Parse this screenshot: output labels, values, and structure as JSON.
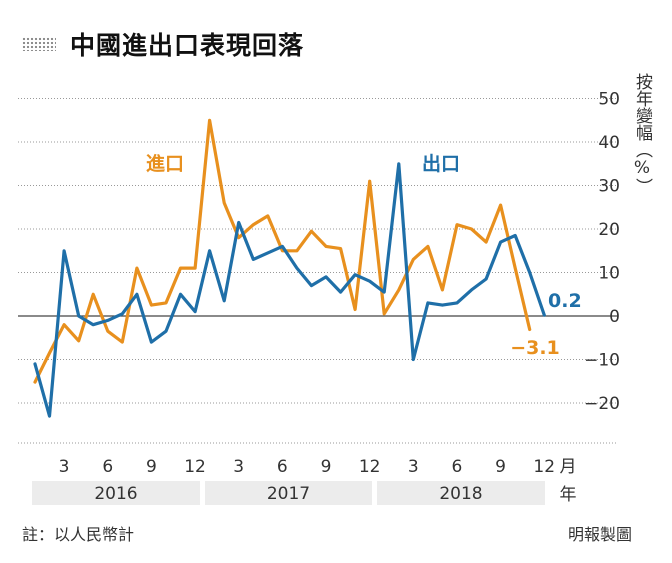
{
  "title": "中國進出口表現回落",
  "ylabel": "按年變幅（%）",
  "note": "註：以人民幣計",
  "credit": "明報製圖",
  "colors": {
    "imports": "#e8901e",
    "exports": "#1f6fa8",
    "zero_line": "#444444",
    "grid": "#999999",
    "year_band": "#ececec"
  },
  "chart_data": {
    "type": "line",
    "ylim": [
      -30,
      55
    ],
    "yticks": [
      "50",
      "40",
      "30",
      "20",
      "10",
      "0",
      "−10",
      "−20"
    ],
    "ytick_values": [
      50,
      40,
      30,
      20,
      10,
      0,
      -10,
      -20
    ],
    "grid": "dotted horizontal",
    "x_tick_labels": [
      "3",
      "6",
      "9",
      "12",
      "3",
      "6",
      "9",
      "12",
      "3",
      "6",
      "9",
      "12"
    ],
    "x_tick_months": [
      3,
      6,
      9,
      12,
      15,
      18,
      21,
      24,
      27,
      30,
      33,
      36
    ],
    "x_unit": "月",
    "year_unit": "年",
    "years": [
      "2016",
      "2017",
      "2018"
    ],
    "series": [
      {
        "name": "進口",
        "key": "imports",
        "end_label": "−3.1",
        "values": [
          -15.2,
          -8.5,
          -2,
          -5.7,
          5,
          -3.5,
          -6,
          11,
          2.5,
          3,
          11,
          11,
          45,
          26,
          18,
          21,
          23,
          15,
          15,
          19.5,
          16,
          15.5,
          1.5,
          31,
          0.5,
          6,
          13,
          16,
          6,
          21,
          20,
          17,
          25.5,
          11,
          -3.1
        ],
        "months": [
          1,
          2,
          3,
          4,
          5,
          6,
          7,
          8,
          9,
          10,
          11,
          12,
          13,
          14,
          15,
          16,
          17,
          18,
          19,
          20,
          21,
          22,
          23,
          24,
          25,
          26,
          27,
          28,
          29,
          30,
          31,
          32,
          33,
          34,
          35
        ]
      },
      {
        "name": "出口",
        "key": "exports",
        "end_label": "0.2",
        "values": [
          -11,
          -23,
          15,
          0,
          -2,
          -1,
          0.5,
          5,
          -6,
          -3.5,
          5,
          1,
          15,
          3.5,
          21.5,
          13,
          14.5,
          16,
          11,
          7,
          9,
          5.5,
          9.5,
          8,
          5.5,
          35,
          -10,
          3,
          2.5,
          3,
          6,
          8.5,
          17,
          18.5,
          10,
          0.2
        ],
        "months": [
          1,
          2,
          3,
          4,
          5,
          6,
          7,
          8,
          9,
          10,
          11,
          12,
          13,
          14,
          15,
          16,
          17,
          18,
          19,
          20,
          21,
          22,
          23,
          24,
          25,
          26,
          27,
          28,
          29,
          30,
          31,
          32,
          33,
          34,
          35,
          36
        ]
      }
    ]
  }
}
